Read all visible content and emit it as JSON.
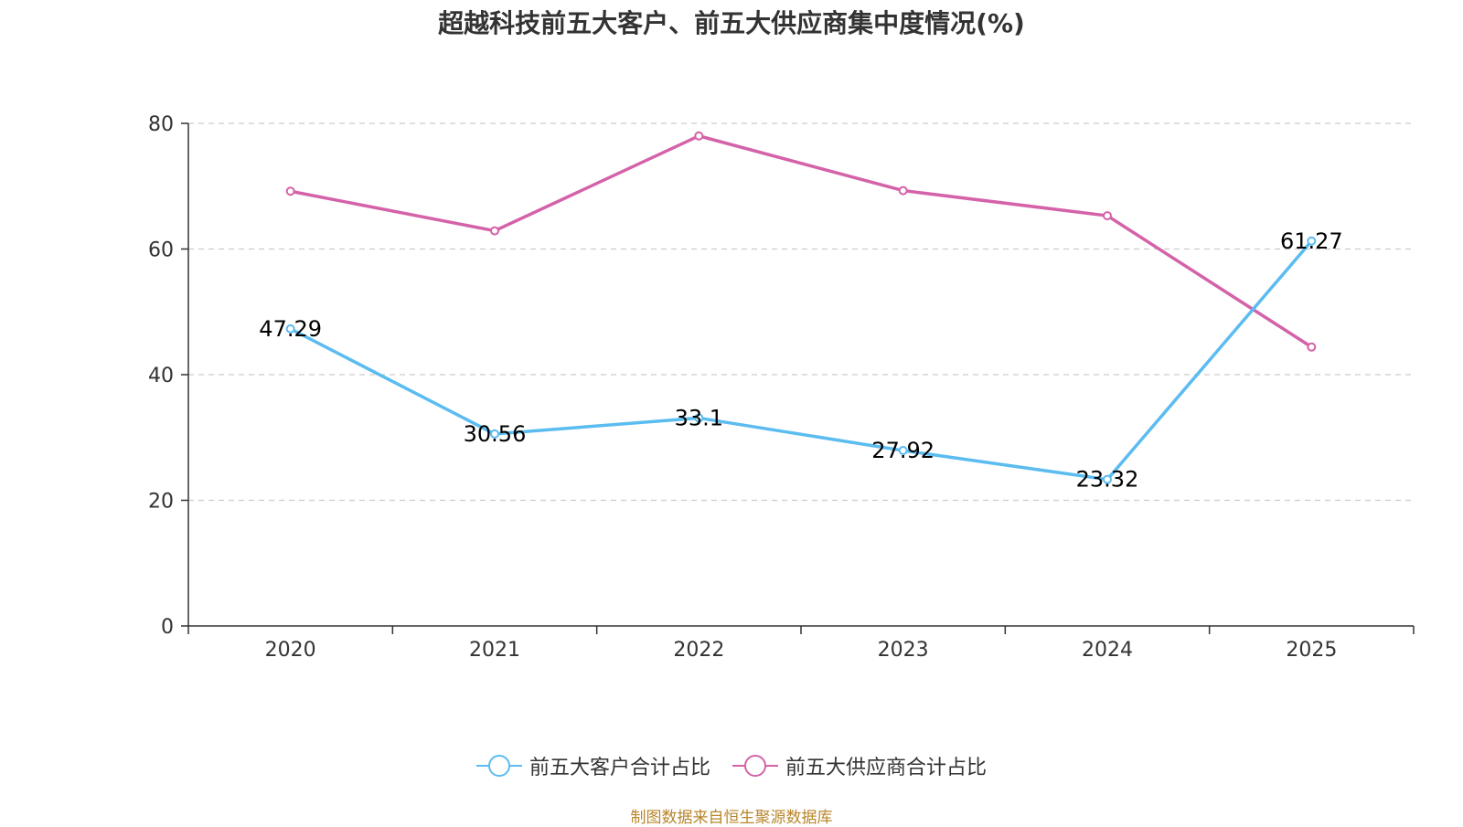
{
  "chart_data": {
    "type": "line",
    "title": "超越科技前五大客户、前五大供应商集中度情况(%)",
    "categories": [
      "2020",
      "2021",
      "2022",
      "2023",
      "2024",
      "2025"
    ],
    "ylim": [
      0,
      80
    ],
    "yticks": [
      0,
      20,
      40,
      60,
      80
    ],
    "grid": true,
    "legend_position": "bottom",
    "series": [
      {
        "name": "前五大客户合计占比",
        "color": "#5bbcf0",
        "values": [
          47.29,
          30.56,
          33.1,
          27.92,
          23.32,
          61.27
        ],
        "labels": [
          "47.29",
          "30.56",
          "33.1",
          "27.92",
          "23.32",
          "61.27"
        ]
      },
      {
        "name": "前五大供应商合计占比",
        "color": "#d462a9",
        "values": [
          69.2,
          62.9,
          78.0,
          69.3,
          65.3,
          44.4
        ],
        "labels": null
      }
    ],
    "source": "制图数据来自恒生聚源数据库"
  }
}
